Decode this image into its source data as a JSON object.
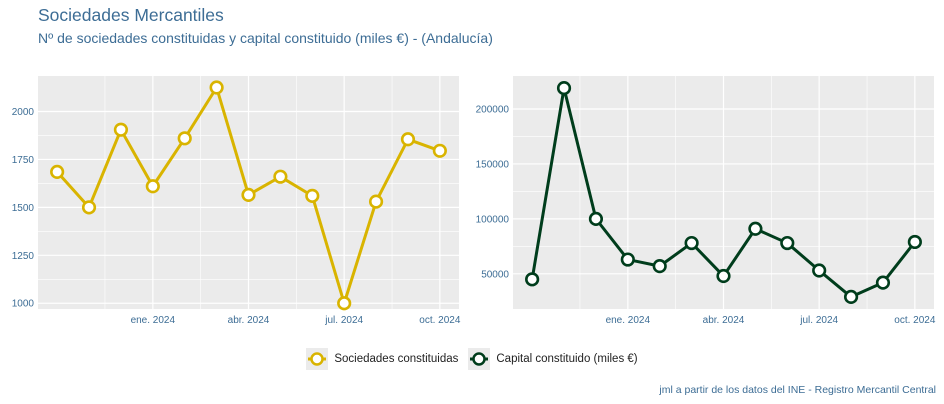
{
  "title": "Sociedades Mercantiles",
  "subtitle": "Nº de sociedades constituidas y capital constituido (miles €) - (Andalucía)",
  "caption": "jml a partir de los datos del INE - Registro Mercantil Central",
  "colors": {
    "sociedades": "#d9b400",
    "capital": "#003d1c",
    "panel_bg": "#ebebeb",
    "grid": "#ffffff",
    "tick_text": "#3d6d95"
  },
  "chart_data": [
    {
      "type": "line",
      "x": [
        "2023-10",
        "2023-11",
        "2023-12",
        "2024-01",
        "2024-02",
        "2024-03",
        "2024-04",
        "2024-05",
        "2024-06",
        "2024-07",
        "2024-08",
        "2024-09",
        "2024-10"
      ],
      "x_ticks": [
        "ene. 2024",
        "abr. 2024",
        "jul. 2024",
        "oct. 2024"
      ],
      "y_ticks": [
        1000,
        1250,
        1500,
        1750,
        2000
      ],
      "ylim": [
        970,
        2185
      ],
      "series": [
        {
          "name": "Sociedades constituidas",
          "values": [
            1685,
            1500,
            1905,
            1610,
            1860,
            2125,
            1565,
            1660,
            1560,
            1000,
            1530,
            1855,
            1795
          ]
        }
      ],
      "grid": true
    },
    {
      "type": "line",
      "x": [
        "2023-10",
        "2023-11",
        "2023-12",
        "2024-01",
        "2024-02",
        "2024-03",
        "2024-04",
        "2024-05",
        "2024-06",
        "2024-07",
        "2024-08",
        "2024-09",
        "2024-10"
      ],
      "x_ticks": [
        "ene. 2024",
        "abr. 2024",
        "jul. 2024",
        "oct. 2024"
      ],
      "y_ticks": [
        50000,
        100000,
        150000,
        200000
      ],
      "ylim": [
        18000,
        230000
      ],
      "series": [
        {
          "name": "Capital constituido (miles €)",
          "values": [
            45000,
            219000,
            100000,
            63000,
            57000,
            78000,
            48000,
            91000,
            78000,
            53000,
            29000,
            42000,
            79000
          ]
        }
      ],
      "grid": true
    }
  ],
  "legend": [
    {
      "label": "Sociedades constituidas"
    },
    {
      "label": "Capital constituido (miles €)"
    }
  ]
}
